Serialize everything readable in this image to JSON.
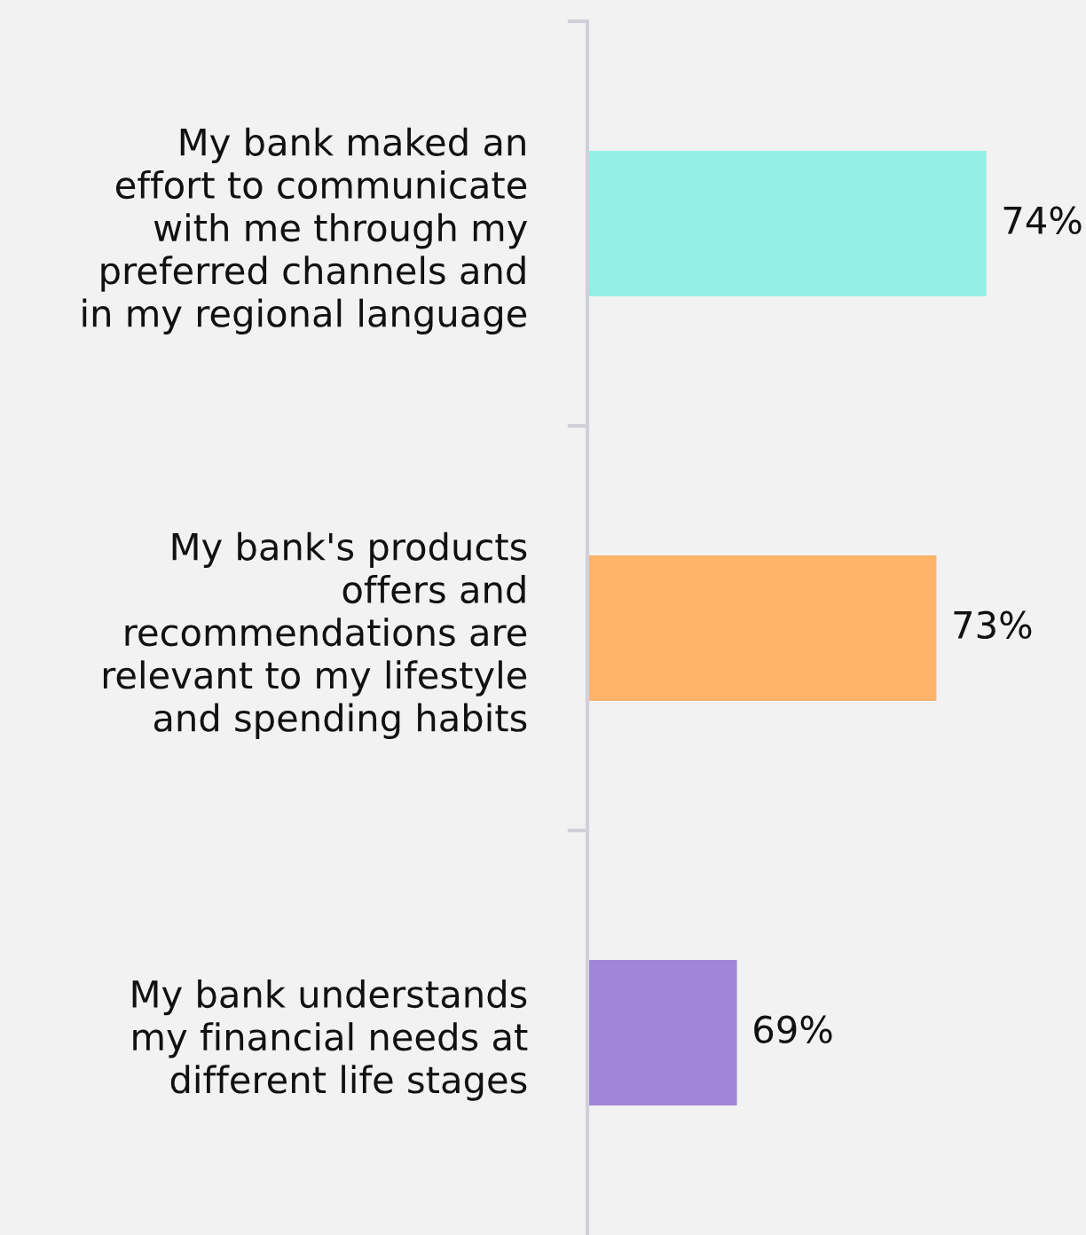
{
  "chart_data": {
    "type": "bar",
    "orientation": "horizontal",
    "categories": [
      "My bank maked an\neffort to communicate\nwith me through my\npreferred channels and\nin my regional language",
      "My bank's products\noffers and\nrecommendations are\nrelevant to my lifestyle\nand spending habits",
      "My bank understands\nmy financial needs at\ndifferent life stages"
    ],
    "values": [
      74,
      73,
      69
    ],
    "colors": [
      "#94efe6",
      "#ffb46a",
      "#a086d9"
    ],
    "value_labels": [
      "74%",
      "73%",
      "69%"
    ],
    "xlim": [
      66,
      76
    ],
    "grid": false,
    "legend": false
  }
}
